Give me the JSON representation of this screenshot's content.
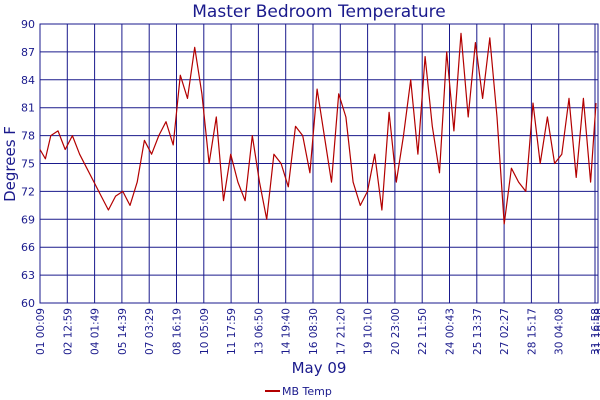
{
  "chart_data": {
    "type": "line",
    "title": "Master Bedroom Temperature",
    "xlabel": "May 09",
    "ylabel": "Degrees F",
    "ylim": [
      60,
      90
    ],
    "y_ticks": [
      "60",
      "63",
      "66",
      "69",
      "72",
      "75",
      "78",
      "81",
      "84",
      "87",
      "90"
    ],
    "x_ticks": [
      "01 00:09",
      "02 12:59",
      "04 01:49",
      "05 14:39",
      "07 03:29",
      "08 16:19",
      "10 05:09",
      "11 17:59",
      "13 06:50",
      "14 19:40",
      "16 08:30",
      "17 21:20",
      "19 10:10",
      "20 23:00",
      "22 11:50",
      "24 00:43",
      "25 13:37",
      "27 02:27",
      "28 15:17",
      "30 04:08",
      "31 16:58",
      "31 16:58"
    ],
    "grid": true,
    "legend_position": "bottom-center",
    "series": [
      {
        "name": "MB Temp",
        "color": "#b30000",
        "x": [
          0,
          0.3,
          0.6,
          1.0,
          1.4,
          1.8,
          2.2,
          2.6,
          3.0,
          3.4,
          3.8,
          4.2,
          4.6,
          5.0,
          5.4,
          5.8,
          6.2,
          6.6,
          7.0,
          7.4,
          7.8,
          8.2,
          8.6,
          9.0,
          9.4,
          9.8,
          10.2,
          10.6,
          11.0,
          11.4,
          11.8,
          12.2,
          12.6,
          13.0,
          13.4,
          13.8,
          14.2,
          14.6,
          15.0,
          15.4,
          15.8,
          16.2,
          16.6,
          17.0,
          17.4,
          17.8,
          18.2,
          18.6,
          19.0,
          19.4,
          19.8,
          20.2,
          20.6,
          21.0,
          21.4,
          21.8,
          22.2,
          22.6,
          23.0,
          23.4,
          23.8,
          24.2,
          24.6,
          25.0,
          25.4,
          25.8,
          26.2,
          26.6,
          27.0,
          27.4,
          27.8,
          28.2,
          28.6,
          29.0,
          29.4,
          29.8,
          30.2,
          30.6,
          30.9
        ],
        "values": [
          76.5,
          75.5,
          78,
          78.5,
          76.5,
          78,
          76,
          74.5,
          73,
          71.5,
          70,
          71.5,
          72,
          70.5,
          73,
          77.5,
          76,
          78,
          79.5,
          77,
          84.5,
          82,
          87.5,
          82.5,
          75,
          80,
          71,
          76,
          73,
          71,
          78,
          73,
          69,
          76,
          75,
          72.5,
          79,
          78,
          74,
          83,
          78,
          73,
          82.5,
          80,
          73,
          70.5,
          72,
          76,
          70,
          80.5,
          73,
          78,
          84,
          76,
          86.5,
          79,
          74,
          87,
          78.5,
          89,
          80,
          88,
          82,
          88.5,
          80,
          68.5,
          74.5,
          73,
          72,
          81.5,
          75,
          80,
          75,
          76,
          82,
          73.5,
          82,
          73,
          81.5
        ]
      }
    ]
  }
}
